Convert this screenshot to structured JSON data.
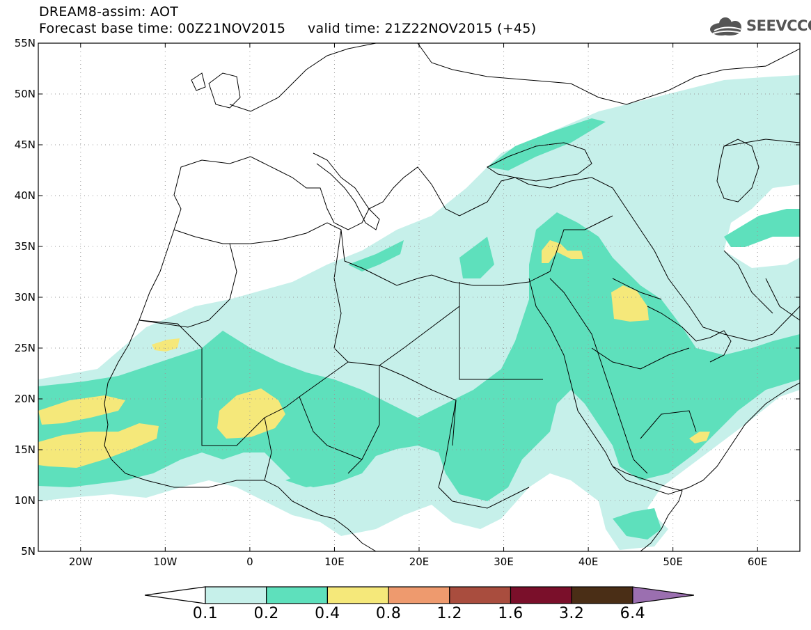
{
  "header": {
    "line1": "DREAM8-assim: AOT",
    "line2": "Forecast base time: 00Z21NOV2015     valid time: 21Z22NOV2015 (+45)"
  },
  "logo": {
    "text": "SEEVCCC",
    "icon": "cloud-logo-icon"
  },
  "map": {
    "lon_range": [
      -25,
      65
    ],
    "lat_range": [
      5,
      55
    ],
    "lat_ticks": [
      {
        "lat": 55,
        "label": "55N"
      },
      {
        "lat": 50,
        "label": "50N"
      },
      {
        "lat": 45,
        "label": "45N"
      },
      {
        "lat": 40,
        "label": "40N"
      },
      {
        "lat": 35,
        "label": "35N"
      },
      {
        "lat": 30,
        "label": "30N"
      },
      {
        "lat": 25,
        "label": "25N"
      },
      {
        "lat": 20,
        "label": "20N"
      },
      {
        "lat": 15,
        "label": "15N"
      },
      {
        "lat": 10,
        "label": "10N"
      },
      {
        "lat": 5,
        "label": "5N"
      }
    ],
    "lon_ticks": [
      {
        "lon": -20,
        "label": "20W"
      },
      {
        "lon": -10,
        "label": "10W"
      },
      {
        "lon": 0,
        "label": "0"
      },
      {
        "lon": 10,
        "label": "10E"
      },
      {
        "lon": 20,
        "label": "20E"
      },
      {
        "lon": 30,
        "label": "30E"
      },
      {
        "lon": 40,
        "label": "40E"
      },
      {
        "lon": 50,
        "label": "50E"
      },
      {
        "lon": 60,
        "label": "60E"
      }
    ],
    "grid": "dotted"
  },
  "colorbar": {
    "levels": [
      "0.1",
      "0.2",
      "0.4",
      "0.8",
      "1.2",
      "1.6",
      "3.2",
      "6.4"
    ],
    "colors": [
      "#ffffff",
      "#c6f0ea",
      "#5ee0bc",
      "#f5e87a",
      "#ee9a6e",
      "#a94d3e",
      "#7a0f2a",
      "#4a2e16",
      "#9b6fb0"
    ]
  }
}
